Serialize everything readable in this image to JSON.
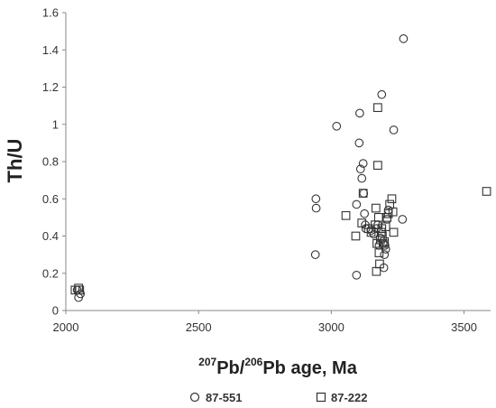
{
  "chart_data": {
    "type": "scatter",
    "xlabel": {
      "sup1": "207",
      "part1": "Pb/",
      "sup2": "206",
      "part2": "Pb age, Ma"
    },
    "ylabel": "Th/U",
    "xlim": [
      2000,
      3600
    ],
    "ylim": [
      0,
      1.6
    ],
    "x_ticks": [
      2000,
      2500,
      3000,
      3500
    ],
    "y_ticks": [
      0,
      0.2,
      0.4,
      0.6,
      0.8,
      1,
      1.2,
      1.4,
      1.6
    ],
    "legend_position": "bottom",
    "series": [
      {
        "name": "87-551",
        "marker": "circle",
        "points": [
          [
            2048,
            0.07
          ],
          [
            2055,
            0.09
          ],
          [
            2043,
            0.11
          ],
          [
            2940,
            0.3
          ],
          [
            2943,
            0.55
          ],
          [
            2942,
            0.6
          ],
          [
            3020,
            0.99
          ],
          [
            3095,
            0.19
          ],
          [
            3095,
            0.57
          ],
          [
            3105,
            0.9
          ],
          [
            3107,
            1.06
          ],
          [
            3110,
            0.76
          ],
          [
            3115,
            0.71
          ],
          [
            3120,
            0.79
          ],
          [
            3122,
            0.63
          ],
          [
            3125,
            0.52
          ],
          [
            3128,
            0.46
          ],
          [
            3130,
            0.44
          ],
          [
            3150,
            0.43
          ],
          [
            3160,
            0.41
          ],
          [
            3170,
            0.44
          ],
          [
            3175,
            0.46
          ],
          [
            3180,
            0.35
          ],
          [
            3185,
            0.39
          ],
          [
            3190,
            1.16
          ],
          [
            3195,
            0.36
          ],
          [
            3198,
            0.23
          ],
          [
            3200,
            0.3
          ],
          [
            3202,
            0.35
          ],
          [
            3205,
            0.33
          ],
          [
            3210,
            0.49
          ],
          [
            3215,
            0.54
          ],
          [
            3235,
            0.97
          ],
          [
            3268,
            0.49
          ],
          [
            3272,
            1.46
          ]
        ]
      },
      {
        "name": "87-222",
        "marker": "square",
        "points": [
          [
            2035,
            0.11
          ],
          [
            2048,
            0.12
          ],
          [
            2052,
            0.11
          ],
          [
            3055,
            0.51
          ],
          [
            3092,
            0.4
          ],
          [
            3115,
            0.47
          ],
          [
            3120,
            0.63
          ],
          [
            3140,
            0.44
          ],
          [
            3150,
            0.42
          ],
          [
            3165,
            0.46
          ],
          [
            3168,
            0.55
          ],
          [
            3170,
            0.21
          ],
          [
            3172,
            0.36
          ],
          [
            3175,
            1.09
          ],
          [
            3175,
            0.78
          ],
          [
            3178,
            0.5
          ],
          [
            3180,
            0.31
          ],
          [
            3182,
            0.25
          ],
          [
            3185,
            0.38
          ],
          [
            3188,
            0.42
          ],
          [
            3190,
            0.44
          ],
          [
            3192,
            0.4
          ],
          [
            3195,
            0.36
          ],
          [
            3200,
            0.37
          ],
          [
            3205,
            0.45
          ],
          [
            3210,
            0.5
          ],
          [
            3215,
            0.52
          ],
          [
            3220,
            0.57
          ],
          [
            3228,
            0.6
          ],
          [
            3232,
            0.53
          ],
          [
            3235,
            0.42
          ],
          [
            3585,
            0.64
          ]
        ]
      }
    ]
  }
}
